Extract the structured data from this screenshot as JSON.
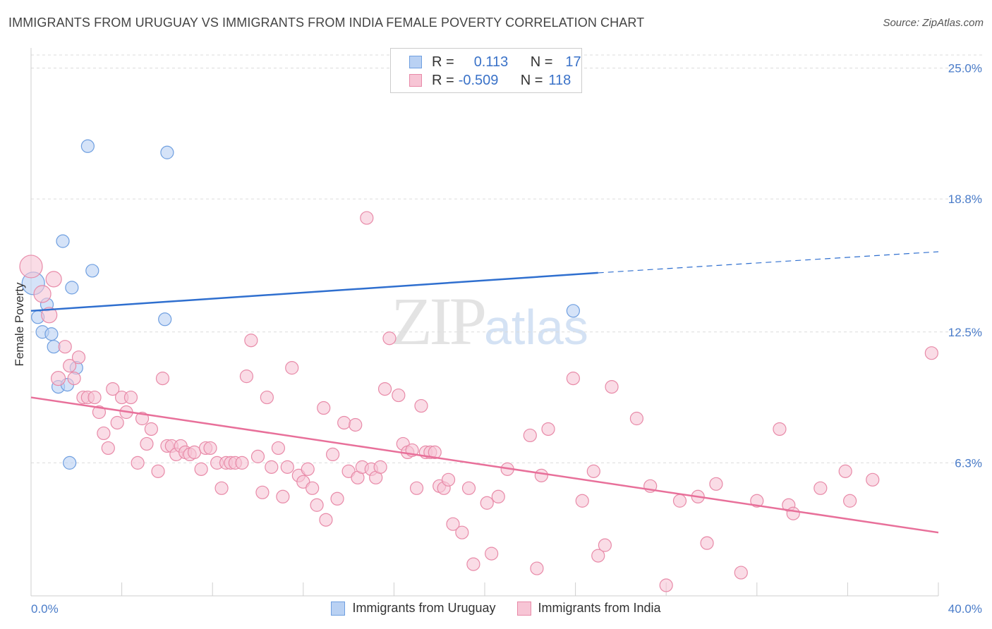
{
  "header": {
    "title": "IMMIGRANTS FROM URUGUAY VS IMMIGRANTS FROM INDIA FEMALE POVERTY CORRELATION CHART",
    "source": "Source: ZipAtlas.com"
  },
  "watermark": {
    "zip": "ZIP",
    "atlas": "atlas"
  },
  "legend": {
    "rows": [
      {
        "r_label": "R =",
        "r_value": "0.113",
        "n_label": "N =",
        "n_value": "17",
        "color": "#6f9fe0",
        "fill": "#b9d1f3"
      },
      {
        "r_label": "R =",
        "r_value": "-0.509",
        "n_label": "N =",
        "n_value": "118",
        "color": "#e88aa8",
        "fill": "#f7c5d5"
      }
    ]
  },
  "bottom_legend": [
    "Immigrants from Uruguay",
    "Immigrants from India"
  ],
  "chart_data": {
    "type": "scatter",
    "title": "IMMIGRANTS FROM URUGUAY VS IMMIGRANTS FROM INDIA FEMALE POVERTY CORRELATION CHART",
    "xlabel": "",
    "ylabel": "Female Poverty",
    "xlim": [
      0,
      40
    ],
    "ylim": [
      0,
      25.0
    ],
    "x_tick_labels": [
      "0.0%",
      "40.0%"
    ],
    "y_ticks": [
      6.3,
      12.5,
      18.8,
      25.0
    ],
    "y_tick_labels": [
      "6.3%",
      "12.5%",
      "18.8%",
      "25.0%"
    ],
    "grid": true,
    "series": [
      {
        "name": "Immigrants from Uruguay",
        "color": "#6f9fe0",
        "fill": "#b9d1f3",
        "points": [
          [
            0.1,
            14.8,
            16
          ],
          [
            0.3,
            13.2,
            9
          ],
          [
            0.5,
            12.5,
            9
          ],
          [
            0.7,
            13.8,
            9
          ],
          [
            0.9,
            12.4,
            9
          ],
          [
            1.0,
            11.8,
            9
          ],
          [
            1.2,
            9.9,
            9
          ],
          [
            1.4,
            16.8,
            9
          ],
          [
            1.6,
            10.0,
            9
          ],
          [
            1.8,
            14.6,
            9
          ],
          [
            2.0,
            10.8,
            9
          ],
          [
            2.5,
            21.3,
            9
          ],
          [
            2.7,
            15.4,
            9
          ],
          [
            1.7,
            6.3,
            9
          ],
          [
            6.0,
            21.0,
            9
          ],
          [
            5.9,
            13.1,
            9
          ],
          [
            23.9,
            13.5,
            9
          ]
        ],
        "trend": {
          "x": [
            0,
            25
          ],
          "y": [
            13.5,
            15.3
          ],
          "dash_to": [
            40,
            16.3
          ]
        }
      },
      {
        "name": "Immigrants from India",
        "color": "#e88aa8",
        "fill": "#f7c5d5",
        "points": [
          [
            0.0,
            15.6,
            16
          ],
          [
            0.5,
            14.3,
            12
          ],
          [
            0.8,
            13.3,
            11
          ],
          [
            1.0,
            15.0,
            11
          ],
          [
            1.2,
            10.3,
            10
          ],
          [
            1.5,
            11.8,
            9
          ],
          [
            1.7,
            10.9,
            9
          ],
          [
            1.9,
            10.3,
            9
          ],
          [
            2.1,
            11.3,
            9
          ],
          [
            2.3,
            9.4,
            9
          ],
          [
            2.5,
            9.4,
            9
          ],
          [
            2.8,
            9.4,
            9
          ],
          [
            3.0,
            8.7,
            9
          ],
          [
            3.2,
            7.7,
            9
          ],
          [
            3.4,
            7.0,
            9
          ],
          [
            3.6,
            9.8,
            9
          ],
          [
            3.8,
            8.2,
            9
          ],
          [
            4.0,
            9.4,
            9
          ],
          [
            4.2,
            8.7,
            9
          ],
          [
            4.4,
            9.4,
            9
          ],
          [
            4.7,
            6.3,
            9
          ],
          [
            4.9,
            8.4,
            9
          ],
          [
            5.1,
            7.2,
            9
          ],
          [
            5.3,
            7.9,
            9
          ],
          [
            5.6,
            5.9,
            9
          ],
          [
            5.8,
            10.3,
            9
          ],
          [
            6.0,
            7.1,
            9
          ],
          [
            6.2,
            7.1,
            9
          ],
          [
            6.4,
            6.7,
            9
          ],
          [
            6.6,
            7.1,
            9
          ],
          [
            6.8,
            6.8,
            9
          ],
          [
            7.0,
            6.7,
            9
          ],
          [
            7.2,
            6.8,
            9
          ],
          [
            7.5,
            6.0,
            9
          ],
          [
            7.7,
            7.0,
            9
          ],
          [
            7.9,
            7.0,
            9
          ],
          [
            8.2,
            6.3,
            9
          ],
          [
            8.4,
            5.1,
            9
          ],
          [
            8.6,
            6.3,
            9
          ],
          [
            8.8,
            6.3,
            9
          ],
          [
            9.0,
            6.3,
            9
          ],
          [
            9.3,
            6.3,
            9
          ],
          [
            9.5,
            10.4,
            9
          ],
          [
            9.7,
            12.1,
            9
          ],
          [
            10.0,
            6.6,
            9
          ],
          [
            10.2,
            4.9,
            9
          ],
          [
            10.4,
            9.4,
            9
          ],
          [
            10.6,
            6.1,
            9
          ],
          [
            10.9,
            7.0,
            9
          ],
          [
            11.1,
            4.7,
            9
          ],
          [
            11.3,
            6.1,
            9
          ],
          [
            11.5,
            10.8,
            9
          ],
          [
            11.8,
            5.7,
            9
          ],
          [
            12.0,
            5.4,
            9
          ],
          [
            12.2,
            6.0,
            9
          ],
          [
            12.4,
            5.1,
            9
          ],
          [
            12.6,
            4.3,
            9
          ],
          [
            12.9,
            8.9,
            9
          ],
          [
            13.0,
            3.6,
            9
          ],
          [
            13.3,
            6.7,
            9
          ],
          [
            13.5,
            4.6,
            9
          ],
          [
            13.8,
            8.2,
            9
          ],
          [
            14.0,
            5.9,
            9
          ],
          [
            14.3,
            8.1,
            9
          ],
          [
            14.4,
            5.6,
            9
          ],
          [
            14.6,
            6.1,
            9
          ],
          [
            14.8,
            17.9,
            9
          ],
          [
            15.0,
            6.0,
            9
          ],
          [
            15.2,
            5.6,
            9
          ],
          [
            15.4,
            6.1,
            9
          ],
          [
            15.6,
            9.8,
            9
          ],
          [
            15.8,
            12.2,
            9
          ],
          [
            16.2,
            9.5,
            9
          ],
          [
            16.4,
            7.2,
            9
          ],
          [
            16.6,
            6.8,
            9
          ],
          [
            16.8,
            6.9,
            9
          ],
          [
            17.0,
            5.1,
            9
          ],
          [
            17.2,
            9.0,
            9
          ],
          [
            17.4,
            6.8,
            9
          ],
          [
            17.6,
            6.8,
            9
          ],
          [
            17.8,
            6.8,
            9
          ],
          [
            18.0,
            5.2,
            9
          ],
          [
            18.2,
            5.1,
            9
          ],
          [
            18.4,
            5.5,
            9
          ],
          [
            18.6,
            3.4,
            9
          ],
          [
            19.0,
            3.0,
            9
          ],
          [
            19.3,
            5.1,
            9
          ],
          [
            19.5,
            1.5,
            9
          ],
          [
            20.1,
            4.4,
            9
          ],
          [
            20.3,
            2.0,
            9
          ],
          [
            20.6,
            4.7,
            9
          ],
          [
            21.0,
            6.0,
            9
          ],
          [
            22.0,
            7.6,
            9
          ],
          [
            22.3,
            1.3,
            9
          ],
          [
            22.5,
            5.7,
            9
          ],
          [
            22.8,
            7.9,
            9
          ],
          [
            23.9,
            10.3,
            9
          ],
          [
            24.3,
            4.5,
            9
          ],
          [
            24.8,
            5.9,
            9
          ],
          [
            25.0,
            1.9,
            9
          ],
          [
            25.3,
            2.4,
            9
          ],
          [
            25.6,
            9.9,
            9
          ],
          [
            26.7,
            8.4,
            9
          ],
          [
            27.3,
            5.2,
            9
          ],
          [
            28.0,
            0.5,
            9
          ],
          [
            28.6,
            4.5,
            9
          ],
          [
            29.4,
            4.7,
            9
          ],
          [
            29.8,
            2.5,
            9
          ],
          [
            30.2,
            5.3,
            9
          ],
          [
            31.3,
            1.1,
            9
          ],
          [
            32.0,
            4.5,
            9
          ],
          [
            33.0,
            7.9,
            9
          ],
          [
            33.4,
            4.3,
            9
          ],
          [
            33.6,
            3.9,
            9
          ],
          [
            34.8,
            5.1,
            9
          ],
          [
            35.9,
            5.9,
            9
          ],
          [
            36.1,
            4.5,
            9
          ],
          [
            37.1,
            5.5,
            9
          ],
          [
            39.7,
            11.5,
            9
          ]
        ],
        "trend": {
          "x": [
            0,
            40
          ],
          "y": [
            9.4,
            3.0
          ]
        }
      }
    ]
  }
}
